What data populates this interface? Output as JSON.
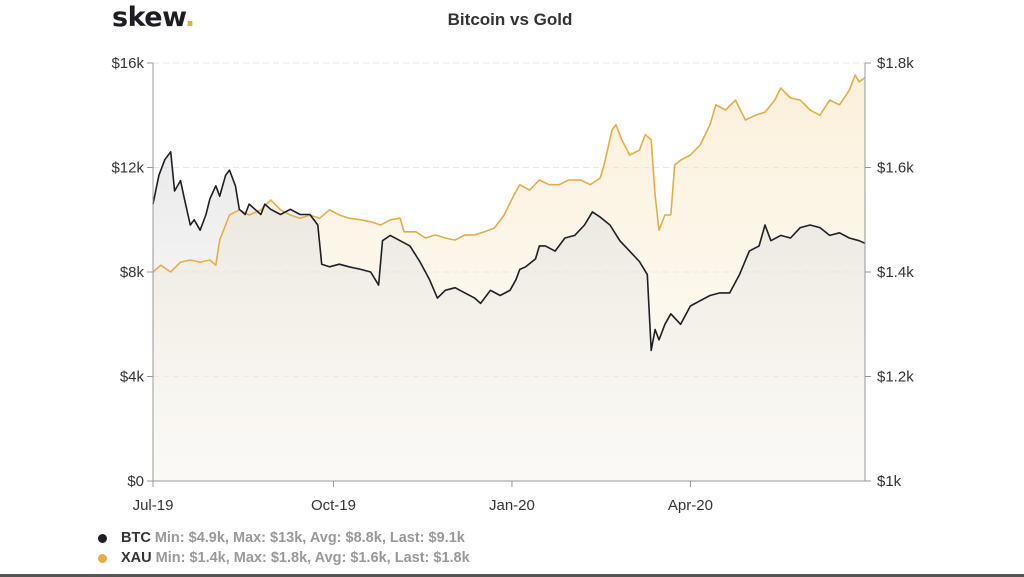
{
  "logo": {
    "text": "skew",
    "dot": "."
  },
  "chart_data": {
    "type": "line",
    "title": "Bitcoin vs Gold",
    "x_unit": "days since 1 Jul 2019",
    "xlim": [
      0,
      363
    ],
    "x_ticks": [
      {
        "label": "Jul-19",
        "day": 0
      },
      {
        "label": "Oct-19",
        "day": 92
      },
      {
        "label": "Jan-20",
        "day": 183
      },
      {
        "label": "Apr-20",
        "day": 274
      }
    ],
    "y_left": {
      "ylim": [
        0,
        16000
      ],
      "ticks": [
        {
          "label": "$0",
          "value": 0
        },
        {
          "label": "$4k",
          "value": 4000
        },
        {
          "label": "$8k",
          "value": 8000
        },
        {
          "label": "$12k",
          "value": 12000
        },
        {
          "label": "$16k",
          "value": 16000
        }
      ]
    },
    "y_right": {
      "ylim": [
        1000,
        1800
      ],
      "ticks": [
        {
          "label": "$1k",
          "value": 1000
        },
        {
          "label": "$1.2k",
          "value": 1200
        },
        {
          "label": "$1.4k",
          "value": 1400
        },
        {
          "label": "$1.6k",
          "value": 1600
        },
        {
          "label": "$1.8k",
          "value": 1800
        }
      ]
    },
    "grid": true,
    "series": [
      {
        "name": "BTC",
        "axis": "left",
        "color": "#1e1e24",
        "points": [
          [
            0,
            10600
          ],
          [
            3,
            11700
          ],
          [
            6,
            12300
          ],
          [
            9,
            12600
          ],
          [
            11,
            11100
          ],
          [
            14,
            11500
          ],
          [
            16,
            10800
          ],
          [
            19,
            9800
          ],
          [
            21,
            10000
          ],
          [
            24,
            9600
          ],
          [
            27,
            10200
          ],
          [
            29,
            10800
          ],
          [
            32,
            11300
          ],
          [
            34,
            10900
          ],
          [
            37,
            11700
          ],
          [
            39,
            11900
          ],
          [
            42,
            11300
          ],
          [
            44,
            10400
          ],
          [
            47,
            10200
          ],
          [
            49,
            10600
          ],
          [
            52,
            10400
          ],
          [
            55,
            10200
          ],
          [
            57,
            10600
          ],
          [
            60,
            10400
          ],
          [
            65,
            10200
          ],
          [
            70,
            10400
          ],
          [
            75,
            10200
          ],
          [
            80,
            10200
          ],
          [
            84,
            9800
          ],
          [
            86,
            8300
          ],
          [
            90,
            8200
          ],
          [
            95,
            8300
          ],
          [
            100,
            8200
          ],
          [
            106,
            8100
          ],
          [
            111,
            8000
          ],
          [
            115,
            7500
          ],
          [
            117,
            9200
          ],
          [
            121,
            9400
          ],
          [
            126,
            9200
          ],
          [
            131,
            9000
          ],
          [
            136,
            8400
          ],
          [
            141,
            7700
          ],
          [
            145,
            7000
          ],
          [
            149,
            7300
          ],
          [
            154,
            7400
          ],
          [
            159,
            7200
          ],
          [
            164,
            7000
          ],
          [
            167,
            6800
          ],
          [
            172,
            7300
          ],
          [
            177,
            7100
          ],
          [
            182,
            7300
          ],
          [
            185,
            7700
          ],
          [
            187,
            8100
          ],
          [
            190,
            8200
          ],
          [
            195,
            8500
          ],
          [
            197,
            9000
          ],
          [
            200,
            9000
          ],
          [
            205,
            8800
          ],
          [
            210,
            9300
          ],
          [
            215,
            9400
          ],
          [
            220,
            9800
          ],
          [
            224,
            10300
          ],
          [
            228,
            10100
          ],
          [
            233,
            9800
          ],
          [
            238,
            9200
          ],
          [
            243,
            8800
          ],
          [
            248,
            8400
          ],
          [
            252,
            7900
          ],
          [
            254,
            5000
          ],
          [
            256,
            5800
          ],
          [
            258,
            5400
          ],
          [
            261,
            6000
          ],
          [
            264,
            6400
          ],
          [
            269,
            6000
          ],
          [
            274,
            6700
          ],
          [
            279,
            6900
          ],
          [
            284,
            7100
          ],
          [
            289,
            7200
          ],
          [
            294,
            7200
          ],
          [
            299,
            7900
          ],
          [
            304,
            8800
          ],
          [
            309,
            9000
          ],
          [
            312,
            9800
          ],
          [
            315,
            9200
          ],
          [
            320,
            9400
          ],
          [
            325,
            9300
          ],
          [
            330,
            9700
          ],
          [
            335,
            9800
          ],
          [
            340,
            9700
          ],
          [
            345,
            9400
          ],
          [
            350,
            9500
          ],
          [
            355,
            9300
          ],
          [
            360,
            9200
          ],
          [
            363,
            9100
          ]
        ]
      },
      {
        "name": "XAU",
        "axis": "right",
        "color": "#e5ad4a",
        "points": [
          [
            0,
            1400
          ],
          [
            4,
            1413
          ],
          [
            9,
            1400
          ],
          [
            14,
            1419
          ],
          [
            19,
            1423
          ],
          [
            24,
            1419
          ],
          [
            29,
            1423
          ],
          [
            32,
            1413
          ],
          [
            34,
            1461
          ],
          [
            37,
            1490
          ],
          [
            39,
            1509
          ],
          [
            44,
            1519
          ],
          [
            49,
            1509
          ],
          [
            55,
            1519
          ],
          [
            60,
            1538
          ],
          [
            65,
            1519
          ],
          [
            70,
            1509
          ],
          [
            75,
            1503
          ],
          [
            80,
            1509
          ],
          [
            85,
            1503
          ],
          [
            90,
            1519
          ],
          [
            95,
            1509
          ],
          [
            100,
            1503
          ],
          [
            106,
            1500
          ],
          [
            111,
            1496
          ],
          [
            116,
            1490
          ],
          [
            121,
            1500
          ],
          [
            126,
            1503
          ],
          [
            128,
            1477
          ],
          [
            134,
            1477
          ],
          [
            139,
            1465
          ],
          [
            144,
            1471
          ],
          [
            149,
            1465
          ],
          [
            154,
            1461
          ],
          [
            159,
            1471
          ],
          [
            164,
            1471
          ],
          [
            169,
            1477
          ],
          [
            174,
            1484
          ],
          [
            179,
            1509
          ],
          [
            184,
            1547
          ],
          [
            187,
            1567
          ],
          [
            192,
            1557
          ],
          [
            197,
            1576
          ],
          [
            202,
            1567
          ],
          [
            207,
            1567
          ],
          [
            212,
            1576
          ],
          [
            218,
            1576
          ],
          [
            223,
            1567
          ],
          [
            228,
            1580
          ],
          [
            230,
            1605
          ],
          [
            234,
            1672
          ],
          [
            236,
            1682
          ],
          [
            239,
            1653
          ],
          [
            243,
            1624
          ],
          [
            248,
            1633
          ],
          [
            251,
            1663
          ],
          [
            254,
            1653
          ],
          [
            256,
            1547
          ],
          [
            258,
            1480
          ],
          [
            261,
            1509
          ],
          [
            264,
            1509
          ],
          [
            266,
            1605
          ],
          [
            269,
            1614
          ],
          [
            274,
            1624
          ],
          [
            279,
            1643
          ],
          [
            284,
            1682
          ],
          [
            287,
            1720
          ],
          [
            292,
            1710
          ],
          [
            297,
            1729
          ],
          [
            302,
            1691
          ],
          [
            307,
            1700
          ],
          [
            312,
            1706
          ],
          [
            317,
            1729
          ],
          [
            320,
            1752
          ],
          [
            325,
            1733
          ],
          [
            330,
            1729
          ],
          [
            335,
            1710
          ],
          [
            340,
            1700
          ],
          [
            345,
            1729
          ],
          [
            350,
            1720
          ],
          [
            355,
            1748
          ],
          [
            358,
            1777
          ],
          [
            360,
            1764
          ],
          [
            363,
            1772
          ]
        ]
      }
    ],
    "legend": [
      {
        "name": "BTC",
        "color": "#1e1e24",
        "stats": "Min: $4.9k, Max: $13k, Avg: $8.8k, Last: $9.1k"
      },
      {
        "name": "XAU",
        "color": "#e5ad4a",
        "stats": "Min: $1.4k, Max: $1.8k, Avg: $1.6k, Last: $1.8k"
      }
    ],
    "legend_position": "bottom-left"
  }
}
